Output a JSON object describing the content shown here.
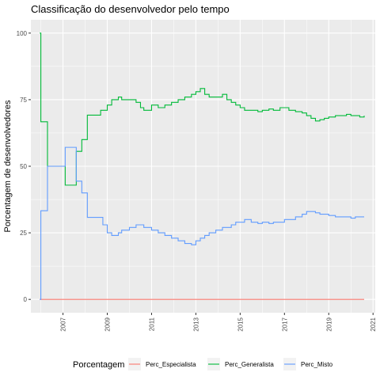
{
  "chart_data": {
    "type": "line",
    "title": "Classificação do desenvolvedor pelo tempo",
    "xlabel": "",
    "ylabel": "Porcentagem de desenvolvedores",
    "x_ticks": [
      "2007",
      "2009",
      "2011",
      "2013",
      "2015",
      "2017",
      "2019",
      "2021"
    ],
    "y_ticks": [
      "0",
      "25",
      "50",
      "75",
      "100"
    ],
    "xlim": [
      2005.55,
      2021.1
    ],
    "ylim": [
      -5,
      105
    ],
    "grid": true,
    "legend": {
      "title": "Porcentagem",
      "position": "bottom",
      "entries": [
        "Perc_Especialista",
        "Perc_Generalista",
        "Perc_Misto"
      ]
    },
    "series": [
      {
        "name": "Perc_Especialista",
        "color": "#F8766D",
        "step": true,
        "x": [
          2005.95,
          2020.6
        ],
        "y": [
          0,
          0
        ]
      },
      {
        "name": "Perc_Generalista",
        "color": "#00BA38",
        "step": true,
        "x": [
          2005.95,
          2006.0,
          2006.3,
          2006.5,
          2007.1,
          2007.6,
          2007.85,
          2008.1,
          2008.25,
          2008.45,
          2008.7,
          2009.0,
          2009.2,
          2009.5,
          2009.65,
          2010.0,
          2010.3,
          2010.5,
          2010.65,
          2011.0,
          2011.3,
          2011.6,
          2011.9,
          2012.2,
          2012.5,
          2012.8,
          2013.0,
          2013.2,
          2013.4,
          2013.6,
          2013.9,
          2014.2,
          2014.4,
          2014.6,
          2014.8,
          2015.0,
          2015.2,
          2015.5,
          2015.8,
          2016.0,
          2016.3,
          2016.5,
          2016.8,
          2017.0,
          2017.2,
          2017.5,
          2017.8,
          2018.0,
          2018.2,
          2018.4,
          2018.6,
          2018.8,
          2019.0,
          2019.3,
          2019.5,
          2019.8,
          2020.0,
          2020.2,
          2020.4,
          2020.6
        ],
        "y": [
          100,
          66.7,
          50,
          50,
          42.9,
          55.6,
          60,
          69.2,
          69.2,
          69.2,
          71,
          73,
          75,
          76,
          75,
          75,
          74,
          72,
          71,
          73,
          72,
          73,
          74,
          75,
          76,
          77,
          78,
          79.2,
          77,
          76,
          76,
          77,
          75,
          74,
          73,
          72,
          71,
          71,
          70.5,
          71,
          71.5,
          71,
          72,
          72,
          71,
          70.5,
          70,
          69,
          68,
          67,
          67.5,
          68,
          68.5,
          69,
          69,
          69.5,
          69,
          69,
          68.5,
          69
        ]
      },
      {
        "name": "Perc_Misto",
        "color": "#619CFF",
        "step": true,
        "x": [
          2005.95,
          2006.0,
          2006.3,
          2006.5,
          2007.1,
          2007.6,
          2007.85,
          2008.1,
          2008.3,
          2008.6,
          2008.8,
          2009.0,
          2009.2,
          2009.5,
          2009.65,
          2010.0,
          2010.3,
          2010.5,
          2010.65,
          2011.0,
          2011.3,
          2011.6,
          2011.9,
          2012.2,
          2012.5,
          2012.8,
          2013.0,
          2013.2,
          2013.4,
          2013.6,
          2013.9,
          2014.2,
          2014.4,
          2014.6,
          2014.8,
          2015.0,
          2015.2,
          2015.5,
          2015.8,
          2016.0,
          2016.3,
          2016.5,
          2016.8,
          2017.0,
          2017.2,
          2017.5,
          2017.8,
          2018.0,
          2018.2,
          2018.4,
          2018.6,
          2018.8,
          2019.0,
          2019.3,
          2019.5,
          2019.8,
          2020.0,
          2020.2,
          2020.4,
          2020.6
        ],
        "y": [
          0,
          33.3,
          50,
          50,
          57.1,
          44.4,
          40,
          30.8,
          30.8,
          30.8,
          28,
          25,
          24,
          25,
          26,
          27,
          28,
          28,
          27,
          26,
          25,
          24,
          23,
          22,
          21,
          20.5,
          22,
          23,
          24,
          25,
          26,
          27,
          27,
          28,
          29,
          29,
          30,
          29,
          28.5,
          29,
          28.5,
          29,
          29,
          30,
          30,
          31,
          32,
          33,
          33,
          32.5,
          32,
          32,
          31.5,
          31,
          31,
          31,
          30.5,
          31,
          31,
          31
        ]
      }
    ]
  }
}
